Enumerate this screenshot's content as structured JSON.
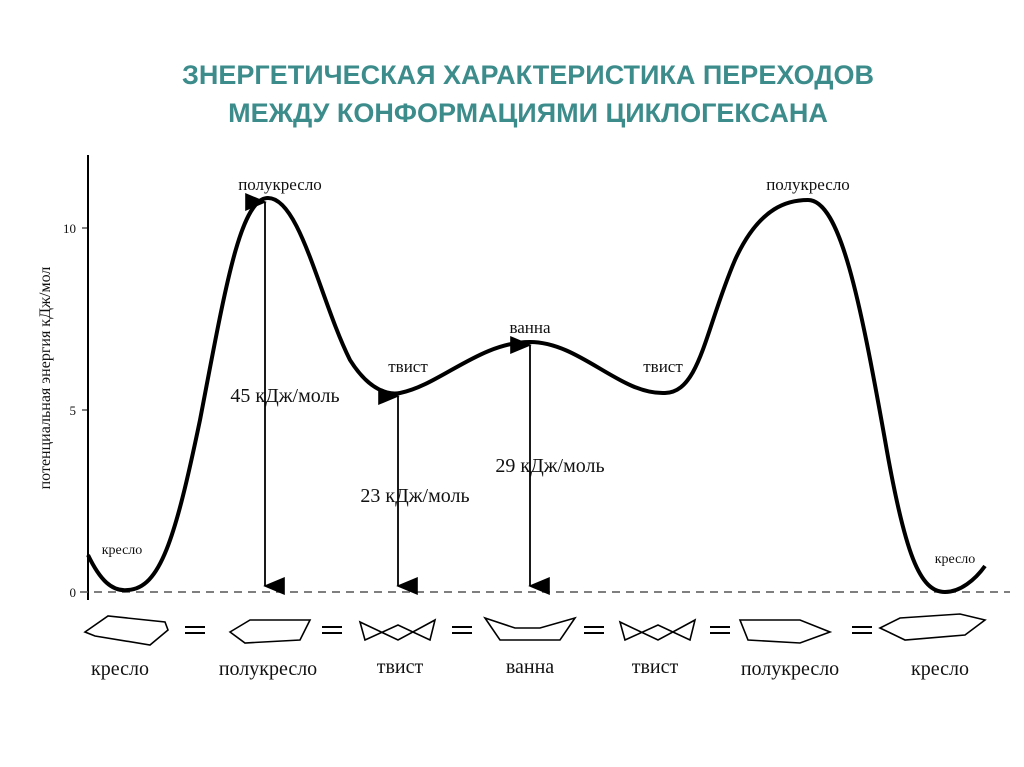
{
  "header": {
    "title_line1": "ЗНЕРГЕТИЧЕСКАЯ ХАРАКТЕРИСТИКА ПЕРЕХОДОВ",
    "title_line2": "МЕЖДУ КОНФОРМАЦИЯМИ ЦИКЛОГЕКСАНА"
  },
  "diagram": {
    "y_axis_label": "потенциальная энергия кДж/мол",
    "y_ticks": [
      10,
      5,
      0
    ],
    "point_labels": [
      "полукресло",
      "полукресло",
      "ванна",
      "твист",
      "твист",
      "кресло",
      "кресло"
    ],
    "energy_labels": [
      "45 кДж/моль",
      "23 кДж/моль",
      "29 кДж/моль"
    ],
    "bottom_labels": [
      "кресло",
      "полукресло",
      "твист",
      "ванна",
      "твист",
      "полукресло",
      "кресло"
    ]
  }
}
